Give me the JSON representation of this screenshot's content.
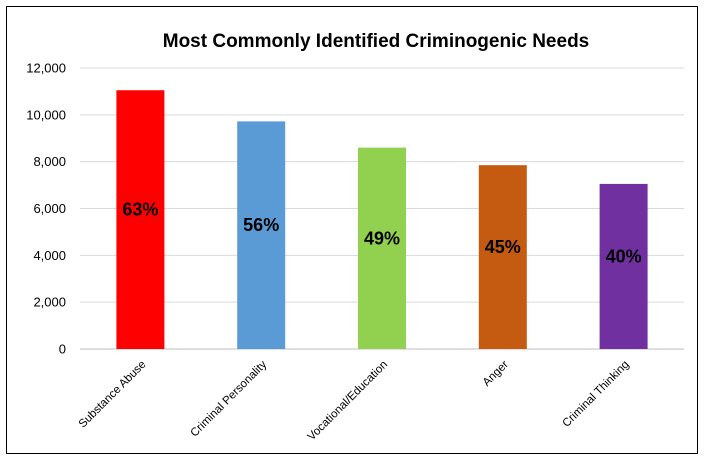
{
  "chart_data": {
    "type": "bar",
    "title": "Most Commonly Identified Criminogenic Needs",
    "xlabel": "",
    "ylabel": "",
    "ylim": [
      0,
      12000
    ],
    "yticks": [
      0,
      2000,
      4000,
      6000,
      8000,
      10000,
      12000
    ],
    "ytick_labels": [
      "0",
      "2,000",
      "4,000",
      "6,000",
      "8,000",
      "10,000",
      "12,000"
    ],
    "grid": true,
    "legend": "none",
    "categories": [
      "Substance Abuse",
      "Criminal Personality",
      "Vocational/Education",
      "Anger",
      "Criminal Thinking"
    ],
    "values": [
      11050,
      9720,
      8600,
      7850,
      7050
    ],
    "data_labels": [
      "63%",
      "56%",
      "49%",
      "45%",
      "40%"
    ],
    "colors": [
      "#ff0000",
      "#5b9bd5",
      "#92d050",
      "#c55a11",
      "#7030a0"
    ]
  }
}
